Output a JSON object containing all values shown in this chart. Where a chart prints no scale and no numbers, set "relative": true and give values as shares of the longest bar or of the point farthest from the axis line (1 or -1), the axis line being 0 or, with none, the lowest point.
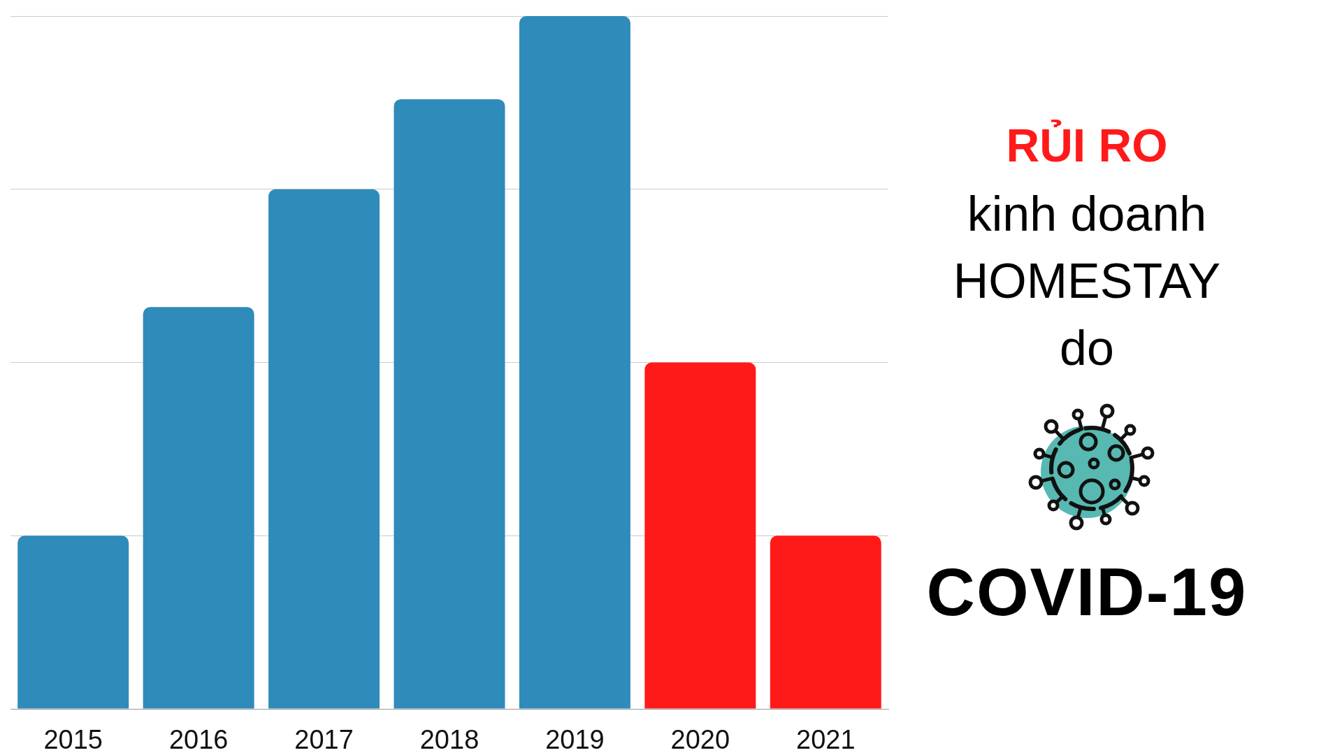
{
  "chart_data": {
    "type": "bar",
    "title": "RỦI RO",
    "subtitle": "kinh doanh HOMESTAY do",
    "annotations": [
      "COVID-19"
    ],
    "categories": [
      "2015",
      "2016",
      "2017",
      "2018",
      "2019",
      "2020",
      "2021"
    ],
    "values": [
      0.25,
      0.58,
      0.75,
      0.88,
      1,
      0.5,
      0.25
    ],
    "colors": [
      "#2e8bba",
      "#2e8bba",
      "#2e8bba",
      "#2e8bba",
      "#2e8bba",
      "#ff1a1a",
      "#ff1a1a"
    ],
    "relative": true,
    "grid": "y"
  }
}
